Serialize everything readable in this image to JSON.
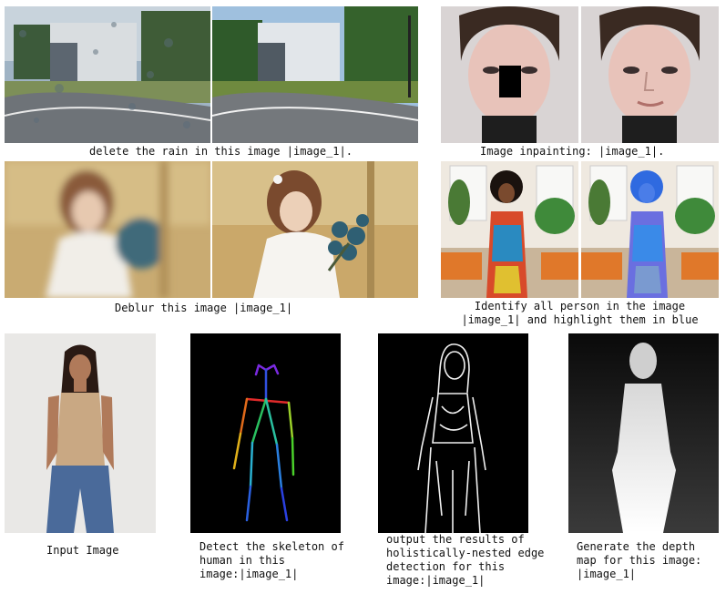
{
  "captions": {
    "derain": "delete the rain in this image |image_1|.",
    "inpaint": "Image inpainting: |image_1|.",
    "deblur": "Deblur this image |image_1|",
    "highlight": "Identify all person in the image\n|image_1| and highlight them in blue",
    "input": "Input Image",
    "skeleton": "Detect the skeleton of\nhuman in this\nimage:|image_1|",
    "edge": "output the results of\nholistically-nested edge\ndetection for this\nimage:|image_1|",
    "depth": "Generate the depth\nmap for this image:\n|image_1|"
  },
  "images": [
    "rainy-road-input",
    "derained-road-output",
    "masked-face-input",
    "inpainted-face-output",
    "blurry-bride-input",
    "sharp-bride-output",
    "woman-in-room-input",
    "woman-highlighted-blue-output",
    "woman-standing-input",
    "skeleton-output",
    "edge-map-output",
    "depth-map-output"
  ],
  "colors": {
    "highlight_blue": "#3a6fe0",
    "skeleton_bg": "#000000"
  }
}
